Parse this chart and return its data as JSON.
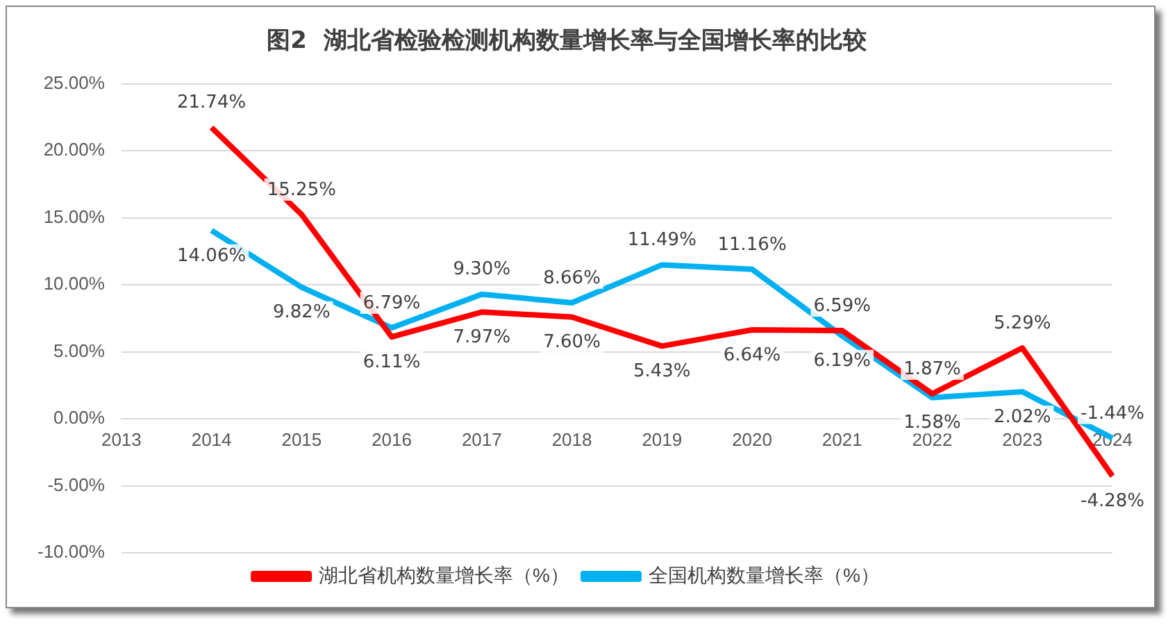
{
  "chart_data": {
    "type": "line",
    "title": "图2  湖北省检验检测机构数量增长率与全国增长率的比较",
    "categories": [
      "2013",
      "2014",
      "2015",
      "2016",
      "2017",
      "2018",
      "2019",
      "2020",
      "2021",
      "2022",
      "2023",
      "2024"
    ],
    "series": [
      {
        "name": "湖北省机构数量增长率（%）",
        "color": "#ff0000",
        "values": [
          null,
          21.74,
          15.25,
          6.11,
          7.97,
          7.6,
          5.43,
          6.64,
          6.59,
          1.87,
          5.29,
          -4.28
        ],
        "value_labels": [
          null,
          "21.74%",
          "15.25%",
          "6.11%",
          "7.97%",
          "7.60%",
          "5.43%",
          "6.64%",
          "6.59%",
          "1.87%",
          "5.29%",
          "-4.28%"
        ]
      },
      {
        "name": "全国机构数量增长率（%）",
        "color": "#00b0f0",
        "values": [
          null,
          14.06,
          9.82,
          6.79,
          9.3,
          8.66,
          11.49,
          11.16,
          6.19,
          1.58,
          2.02,
          -1.44
        ],
        "value_labels": [
          null,
          "14.06%",
          "9.82%",
          "6.79%",
          "9.30%",
          "8.66%",
          "11.49%",
          "11.16%",
          "6.19%",
          "1.58%",
          "2.02%",
          "-1.44%"
        ]
      }
    ],
    "ylim": [
      -10,
      25
    ],
    "yticks": [
      {
        "value": -10,
        "label": "-10.00%"
      },
      {
        "value": -5,
        "label": "-5.00%"
      },
      {
        "value": 0,
        "label": "0.00%"
      },
      {
        "value": 5,
        "label": "5.00%"
      },
      {
        "value": 10,
        "label": "10.00%"
      },
      {
        "value": 15,
        "label": "15.00%"
      },
      {
        "value": 20,
        "label": "20.00%"
      },
      {
        "value": 25,
        "label": "25.00%"
      }
    ],
    "grid": "y",
    "legend": "bottom",
    "marker": "none",
    "line_style": "solid"
  }
}
